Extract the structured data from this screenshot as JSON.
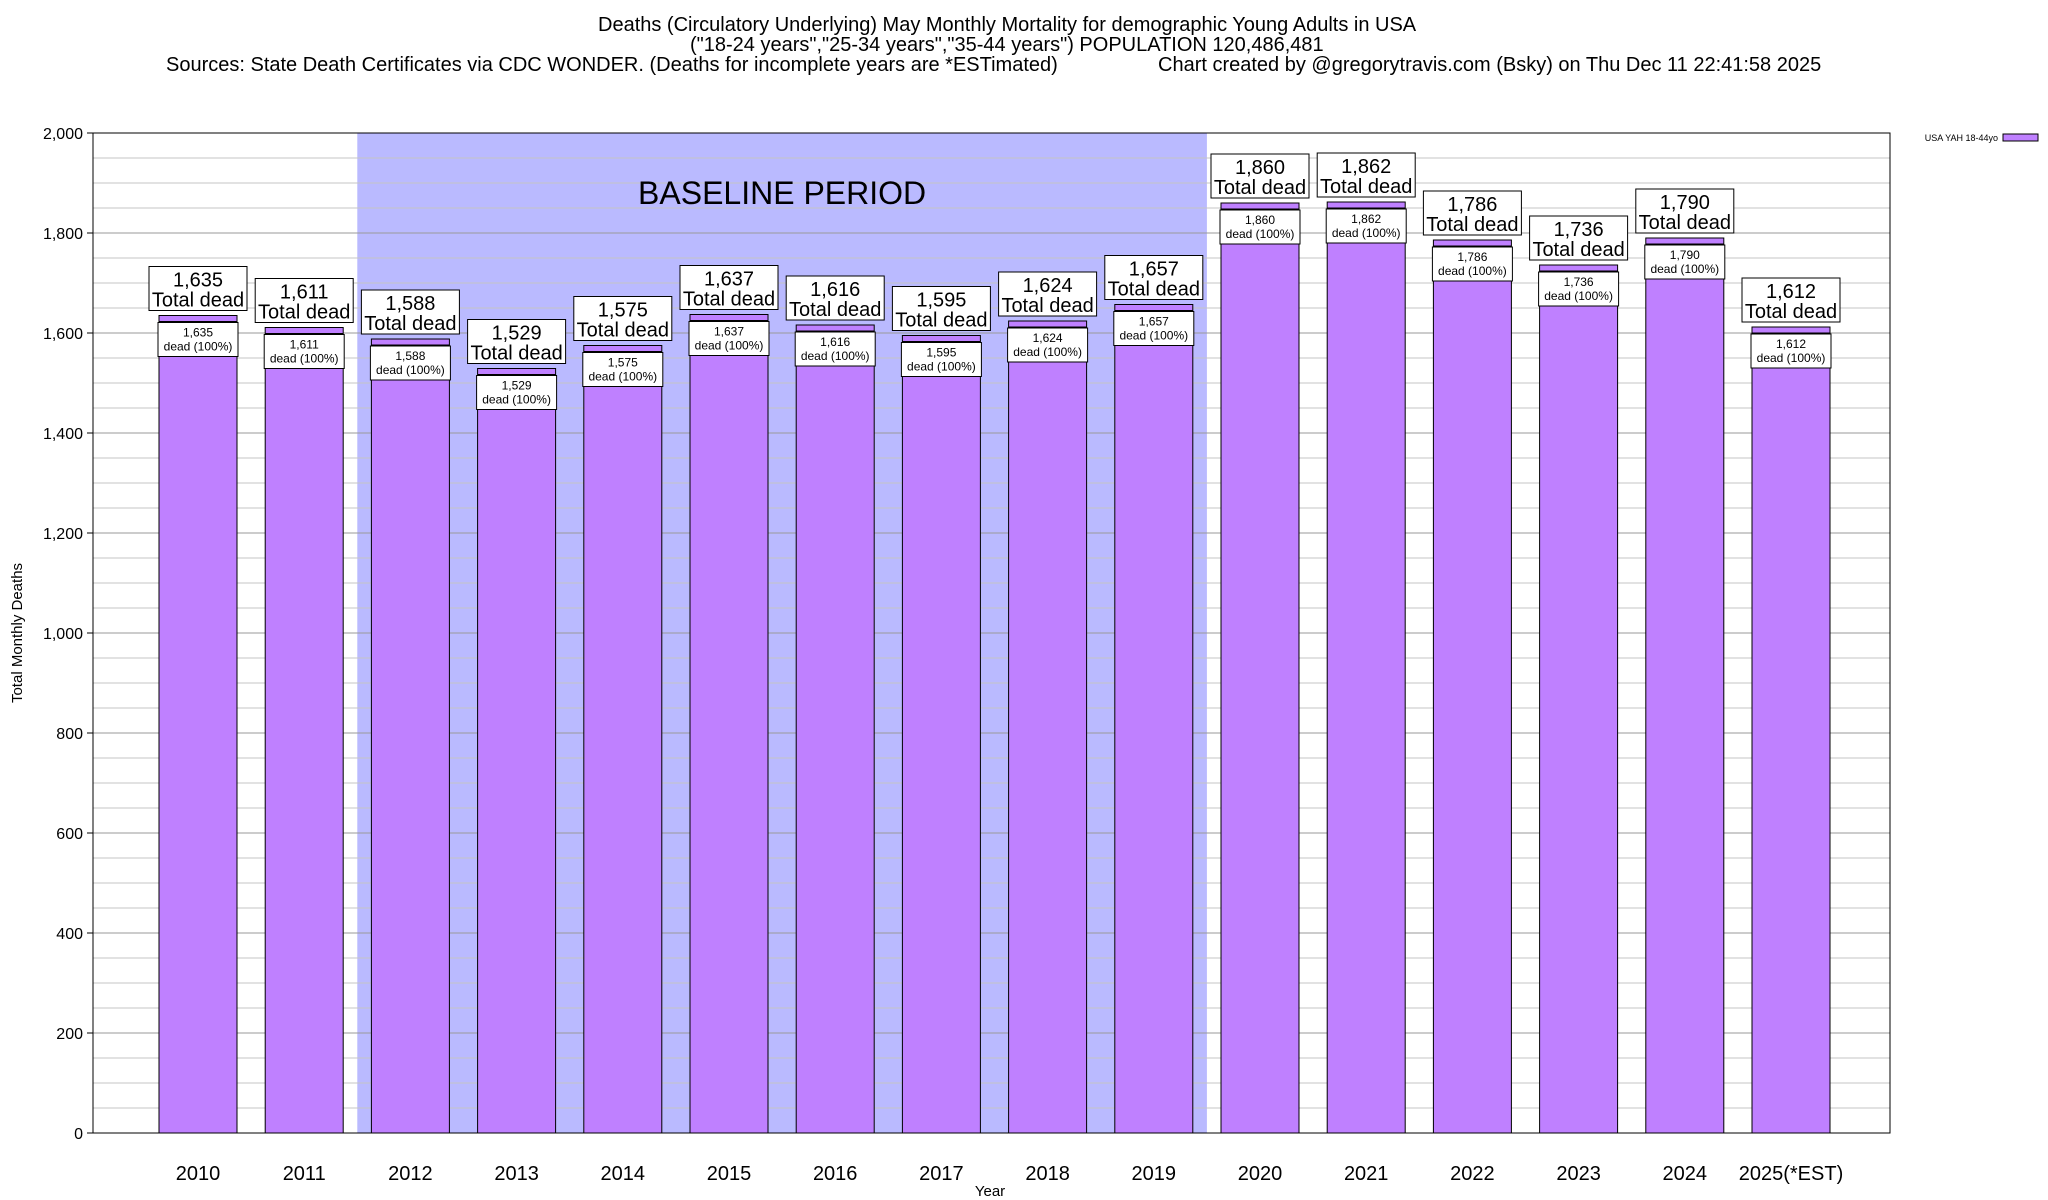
{
  "chart_data": {
    "type": "bar",
    "title": "Deaths (Circulatory Underlying) May Monthly Mortality for demographic Young Adults in USA",
    "subtitle": "(\"18-24 years\",\"25-34 years\",\"35-44 years\") POPULATION 120,486,481",
    "sources": "Sources: State Death Certificates via CDC WONDER. (Deaths for incomplete years are *ESTimated)",
    "credit": "Chart created by @gregorytravis.com (Bsky) on Thu Dec 11 22:41:58 2025",
    "xlabel": "Year",
    "ylabel": "Total Monthly Deaths",
    "ylim": [
      0,
      2000
    ],
    "yticks": [
      0,
      200,
      400,
      600,
      800,
      1000,
      1200,
      1400,
      1600,
      1800,
      2000
    ],
    "ytick_labels": [
      "0",
      "200",
      "400",
      "600",
      "800",
      "1,000",
      "1,200",
      "1,400",
      "1,600",
      "1,800",
      "2,000"
    ],
    "grid": true,
    "categories": [
      "2010",
      "2011",
      "2012",
      "2013",
      "2014",
      "2015",
      "2016",
      "2017",
      "2018",
      "2019",
      "2020",
      "2021",
      "2022",
      "2023",
      "2024",
      "2025(*EST)"
    ],
    "series": [
      {
        "name": "USA YAH 18-44yo",
        "color": "#bf80ff",
        "values": [
          1635,
          1611,
          1588,
          1529,
          1575,
          1637,
          1616,
          1595,
          1624,
          1657,
          1860,
          1862,
          1786,
          1736,
          1790,
          1612
        ]
      }
    ],
    "value_labels": [
      "1,635",
      "1,611",
      "1,588",
      "1,529",
      "1,575",
      "1,637",
      "1,616",
      "1,595",
      "1,624",
      "1,657",
      "1,860",
      "1,862",
      "1,786",
      "1,736",
      "1,790",
      "1,612"
    ],
    "total_label_suffix": "Total dead",
    "inner_label_suffix": "dead (100%)",
    "baseline": {
      "label": "BASELINE PERIOD",
      "start": "2012",
      "end": "2019",
      "color": "#babaff"
    },
    "legend": {
      "position": "top-right",
      "entry": "USA YAH 18-44yo"
    }
  }
}
